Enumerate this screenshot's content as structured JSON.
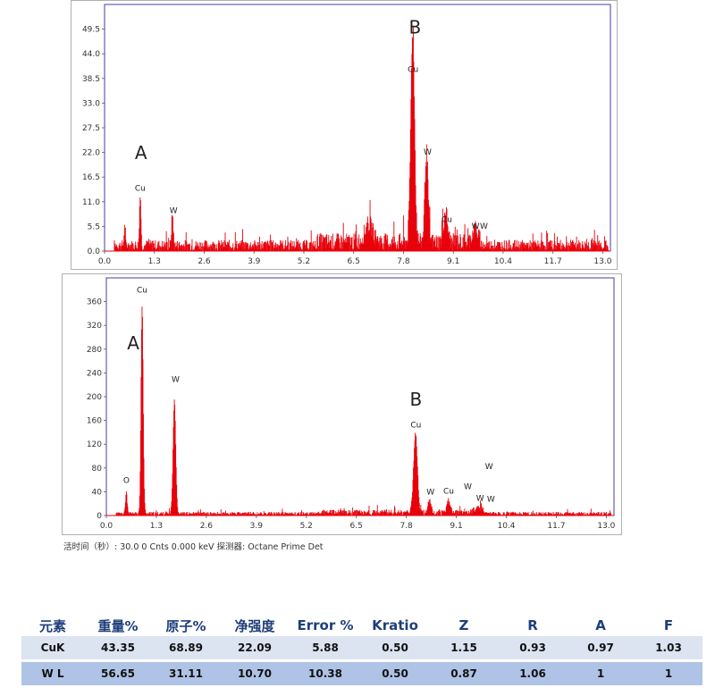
{
  "chart_data": [
    {
      "type": "line",
      "title": "",
      "xlabel": "",
      "ylabel": "",
      "xlim": [
        0.0,
        13.2
      ],
      "ylim": [
        0,
        55
      ],
      "x_ticks": [
        "0.0",
        "1.3",
        "2.6",
        "3.9",
        "5.2",
        "6.5",
        "7.8",
        "9.1",
        "10.4",
        "11.7",
        "13.0"
      ],
      "y_ticks": [
        "0.0",
        "5.5",
        "11.0",
        "16.5",
        "22.0",
        "27.5",
        "33.0",
        "38.5",
        "44.0",
        "49.5"
      ],
      "series_color": "#e8000b",
      "noise_level": 2.5,
      "peaks": [
        {
          "x": 0.52,
          "y": 4,
          "w": 0.02
        },
        {
          "x": 0.93,
          "y": 12,
          "w": 0.025
        },
        {
          "x": 1.77,
          "y": 7,
          "w": 0.03
        },
        {
          "x": 6.9,
          "y": 4,
          "w": 0.15
        },
        {
          "x": 8.04,
          "y": 47,
          "w": 0.07
        },
        {
          "x": 8.4,
          "y": 20,
          "w": 0.06
        },
        {
          "x": 8.9,
          "y": 7,
          "w": 0.07
        },
        {
          "x": 9.67,
          "y": 3,
          "w": 0.1
        }
      ],
      "annotations": [
        {
          "label": "Cu",
          "x": 0.93,
          "y": 13.5,
          "big": false
        },
        {
          "label": "W",
          "x": 1.8,
          "y": 8.5,
          "big": false
        },
        {
          "label": "Cu",
          "x": 8.05,
          "y": 40,
          "big": false
        },
        {
          "label": "W",
          "x": 8.43,
          "y": 21.5,
          "big": false
        },
        {
          "label": "Cu",
          "x": 8.93,
          "y": 6.5,
          "big": false
        },
        {
          "label": "W",
          "x": 9.68,
          "y": 5,
          "big": false
        },
        {
          "label": "W",
          "x": 9.9,
          "y": 5,
          "big": false
        },
        {
          "label": "A",
          "x": 0.95,
          "y": 20.5,
          "big": true
        },
        {
          "label": "B",
          "x": 8.1,
          "y": 48.5,
          "big": true
        }
      ]
    },
    {
      "type": "line",
      "title": "",
      "xlabel": "",
      "ylabel": "",
      "xlim": [
        0.0,
        13.2
      ],
      "ylim": [
        0,
        400
      ],
      "x_ticks": [
        "0.0",
        "1.3",
        "2.6",
        "3.9",
        "5.2",
        "6.5",
        "7.8",
        "9.1",
        "10.4",
        "11.7",
        "13.0"
      ],
      "y_ticks": [
        "0",
        "40",
        "80",
        "120",
        "160",
        "200",
        "240",
        "280",
        "320",
        "360"
      ],
      "series_color": "#e8000b",
      "noise_level": 6,
      "peaks": [
        {
          "x": 0.52,
          "y": 38,
          "w": 0.03
        },
        {
          "x": 0.93,
          "y": 350,
          "w": 0.04
        },
        {
          "x": 1.77,
          "y": 190,
          "w": 0.05
        },
        {
          "x": 8.04,
          "y": 135,
          "w": 0.07
        },
        {
          "x": 8.4,
          "y": 18,
          "w": 0.06
        },
        {
          "x": 8.9,
          "y": 20,
          "w": 0.06
        },
        {
          "x": 9.67,
          "y": 8,
          "w": 0.15
        }
      ],
      "annotations": [
        {
          "label": "Cu",
          "x": 0.93,
          "y": 375,
          "big": false
        },
        {
          "label": "O",
          "x": 0.52,
          "y": 55,
          "big": false
        },
        {
          "label": "W",
          "x": 1.8,
          "y": 225,
          "big": false
        },
        {
          "label": "Cu",
          "x": 8.05,
          "y": 148,
          "big": false
        },
        {
          "label": "W",
          "x": 8.43,
          "y": 35,
          "big": false
        },
        {
          "label": "Cu",
          "x": 8.9,
          "y": 37,
          "big": false
        },
        {
          "label": "W",
          "x": 9.4,
          "y": 44,
          "big": false
        },
        {
          "label": "W",
          "x": 9.95,
          "y": 78,
          "big": false
        },
        {
          "label": "W",
          "x": 9.72,
          "y": 25,
          "big": false
        },
        {
          "label": "W",
          "x": 10.0,
          "y": 23,
          "big": false
        },
        {
          "label": "A",
          "x": 0.7,
          "y": 280,
          "big": true
        },
        {
          "label": "B",
          "x": 8.05,
          "y": 185,
          "big": true
        }
      ]
    }
  ],
  "caption": "活时间（秒）: 30.0 0 Cnts 0.000 keV 探测器: Octane Prime Det",
  "table": {
    "headers": [
      "元素",
      "重量%",
      "原子%",
      "净强度",
      "Error %",
      "Kratio",
      "Z",
      "R",
      "A",
      "F"
    ],
    "rows": [
      [
        "CuK",
        "43.35",
        "68.89",
        "22.09",
        "5.88",
        "0.50",
        "1.15",
        "0.93",
        "0.97",
        "1.03"
      ],
      [
        "W L",
        "56.65",
        "31.11",
        "10.70",
        "10.38",
        "0.50",
        "0.87",
        "1.06",
        "1",
        "1"
      ]
    ]
  }
}
